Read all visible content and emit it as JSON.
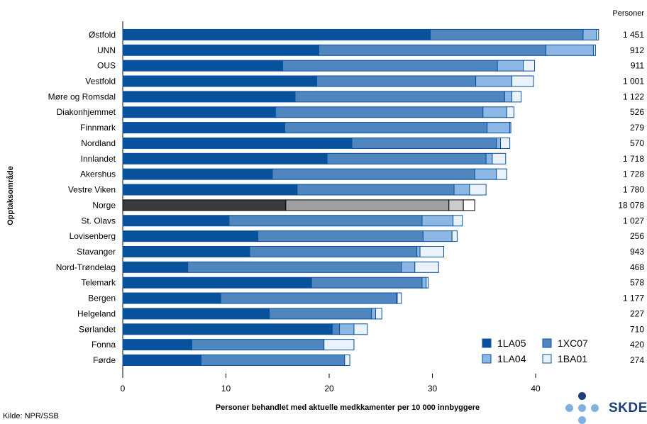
{
  "chart_data": {
    "type": "bar",
    "orientation": "horizontal",
    "stacked": true,
    "xlabel": "Personer behandlet med aktuelle medkkamenter per 10 000 innbyggere",
    "ylabel": "Opptaksområde",
    "right_column_header": "Personer",
    "xlim": [
      0,
      46
    ],
    "xticks": [
      0,
      10,
      20,
      30,
      40
    ],
    "legend_position": "bottom-right",
    "grid": false,
    "categories": [
      "Østfold",
      "UNN",
      "OUS",
      "Vestfold",
      "Møre og Romsdal",
      "Diakonhjemmet",
      "Finnmark",
      "Nordland",
      "Innlandet",
      "Akershus",
      "Vestre Viken",
      "Norge",
      "St. Olavs",
      "Lovisenberg",
      "Stavanger",
      "Nord-Trøndelag",
      "Telemark",
      "Bergen",
      "Helgeland",
      "Sørlandet",
      "Fonna",
      "Førde"
    ],
    "highlight_category": "Norge",
    "personer": [
      "1 451",
      "912",
      "911",
      "1 001",
      "1 122",
      "526",
      "279",
      "570",
      "1 718",
      "1 728",
      "1 780",
      "18 078",
      "1 027",
      "256",
      "943",
      "468",
      "578",
      "1 177",
      "227",
      "710",
      "420",
      "274"
    ],
    "series": [
      {
        "name": "1LA05",
        "color": "#08519c",
        "values": [
          29.8,
          19.0,
          15.5,
          18.8,
          16.7,
          14.8,
          15.7,
          22.2,
          19.8,
          14.5,
          16.9,
          15.8,
          10.3,
          13.1,
          12.3,
          6.3,
          18.3,
          9.5,
          14.2,
          20.3,
          6.7,
          7.6
        ]
      },
      {
        "name": "1XC07",
        "color": "#4f86c0",
        "values": [
          14.8,
          22.0,
          20.8,
          15.4,
          20.3,
          20.1,
          19.6,
          14.0,
          15.4,
          19.6,
          15.2,
          15.8,
          18.7,
          16.0,
          16.2,
          20.7,
          10.7,
          17.0,
          9.9,
          0.7,
          12.8,
          13.9
        ]
      },
      {
        "name": "1LA04",
        "color": "#8cb6e3",
        "values": [
          1.3,
          4.6,
          2.5,
          3.5,
          0.7,
          2.3,
          2.2,
          0.4,
          0.6,
          2.1,
          1.5,
          1.4,
          3.0,
          2.8,
          0.3,
          1.3,
          0.4,
          0.1,
          0.4,
          1.4,
          0.0,
          0.0
        ]
      },
      {
        "name": "1BA01",
        "color": "#eaf3fb",
        "values": [
          0.2,
          0.2,
          1.1,
          2.1,
          0.9,
          0.7,
          0.1,
          0.9,
          1.3,
          1.0,
          1.6,
          1.1,
          0.9,
          0.5,
          2.3,
          2.3,
          0.2,
          0.4,
          0.6,
          1.3,
          2.9,
          0.5
        ]
      }
    ]
  },
  "footer": {
    "source": "Kilde: NPR/SSB"
  },
  "logo": {
    "text": "SKDE"
  }
}
